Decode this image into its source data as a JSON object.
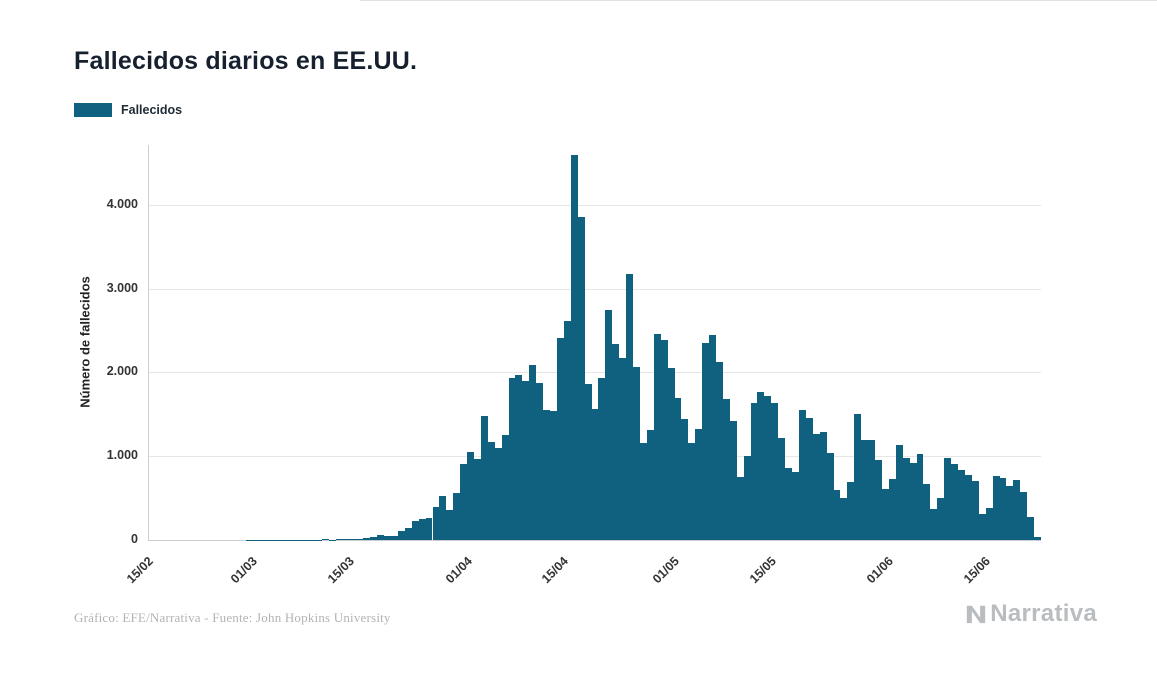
{
  "page": {
    "title": "Fallecidos diarios en EE.UU.",
    "footer": "Gráfico: EFE/Narrativa - Fuente: John Hopkins University",
    "brand": "Narrativa"
  },
  "legend": {
    "label": "Fallecidos"
  },
  "colors": {
    "bar": "#106180",
    "grid": "#e6e6e6",
    "axis": "#c9ced3",
    "title": "#16202e",
    "tick": "#333333",
    "footer_text": "#b3b3b3",
    "brand": "#b9bdc0"
  },
  "chart_data": {
    "type": "bar",
    "title": "Fallecidos diarios en EE.UU.",
    "series_name": "Fallecidos",
    "xlabel": "",
    "ylabel": "Número de fallecidos",
    "ylim": [
      0,
      4716
    ],
    "grid": "horizontal",
    "legend_position": "top-left",
    "yticks": [
      {
        "value": 0,
        "label": "0"
      },
      {
        "value": 1000,
        "label": "1.000"
      },
      {
        "value": 2000,
        "label": "2.000"
      },
      {
        "value": 3000,
        "label": "3.000"
      },
      {
        "value": 4000,
        "label": "4.000"
      }
    ],
    "xticks": [
      {
        "index": 0,
        "label": "15/02"
      },
      {
        "index": 15,
        "label": "01/03"
      },
      {
        "index": 29,
        "label": "15/03"
      },
      {
        "index": 46,
        "label": "01/04"
      },
      {
        "index": 60,
        "label": "15/04"
      },
      {
        "index": 76,
        "label": "01/05"
      },
      {
        "index": 90,
        "label": "15/05"
      },
      {
        "index": 107,
        "label": "01/06"
      },
      {
        "index": 121,
        "label": "15/06"
      }
    ],
    "x": [
      "15/02",
      "16/02",
      "17/02",
      "18/02",
      "19/02",
      "20/02",
      "21/02",
      "22/02",
      "23/02",
      "24/02",
      "25/02",
      "26/02",
      "27/02",
      "28/02",
      "29/02",
      "01/03",
      "02/03",
      "03/03",
      "04/03",
      "05/03",
      "06/03",
      "07/03",
      "08/03",
      "09/03",
      "10/03",
      "11/03",
      "12/03",
      "13/03",
      "14/03",
      "15/03",
      "16/03",
      "17/03",
      "18/03",
      "19/03",
      "20/03",
      "21/03",
      "22/03",
      "23/03",
      "24/03",
      "25/03",
      "26/03",
      "27/03",
      "28/03",
      "29/03",
      "30/03",
      "31/03",
      "01/04",
      "02/04",
      "03/04",
      "04/04",
      "05/04",
      "06/04",
      "07/04",
      "08/04",
      "09/04",
      "10/04",
      "11/04",
      "12/04",
      "13/04",
      "14/04",
      "15/04",
      "16/04",
      "17/04",
      "18/04",
      "19/04",
      "20/04",
      "21/04",
      "22/04",
      "23/04",
      "24/04",
      "25/04",
      "26/04",
      "27/04",
      "28/04",
      "29/04",
      "30/04",
      "01/05",
      "02/05",
      "03/05",
      "04/05",
      "05/05",
      "06/05",
      "07/05",
      "08/05",
      "09/05",
      "10/05",
      "11/05",
      "12/05",
      "13/05",
      "14/05",
      "15/05",
      "16/05",
      "17/05",
      "18/05",
      "19/05",
      "20/05",
      "21/05",
      "22/05",
      "23/05",
      "24/05",
      "25/05",
      "26/05",
      "27/05",
      "28/05",
      "29/05",
      "30/05",
      "31/05",
      "01/06",
      "02/06",
      "03/06",
      "04/06",
      "05/06",
      "06/06",
      "07/06",
      "08/06",
      "09/06",
      "10/06",
      "11/06",
      "12/06",
      "13/06",
      "14/06",
      "15/06",
      "16/06",
      "17/06",
      "18/06",
      "19/06",
      "20/06",
      "21/06",
      "22/06"
    ],
    "values": [
      0,
      0,
      0,
      0,
      0,
      0,
      0,
      0,
      0,
      0,
      0,
      0,
      0,
      0,
      1,
      1,
      5,
      1,
      4,
      1,
      3,
      2,
      4,
      4,
      6,
      8,
      3,
      8,
      9,
      11,
      18,
      23,
      41,
      57,
      49,
      46,
      111,
      140,
      225,
      247,
      268,
      400,
      525,
      363,
      558,
      912,
      1049,
      968,
      1480,
      1170,
      1100,
      1255,
      1939,
      1970,
      1900,
      2087,
      1877,
      1557,
      1541,
      2408,
      2620,
      4591,
      3857,
      1867,
      1561,
      1940,
      2749,
      2341,
      2172,
      3179,
      2062,
      1157,
      1317,
      2462,
      2390,
      2053,
      1691,
      1449,
      1154,
      1324,
      2350,
      2444,
      2129,
      1687,
      1422,
      750,
      1008,
      1630,
      1772,
      1715,
      1635,
      1218,
      865,
      808,
      1552,
      1461,
      1263,
      1293,
      1035,
      592,
      500,
      693,
      1505,
      1199,
      1193,
      960,
      605,
      730,
      1134,
      984,
      921,
      1030,
      670,
      373,
      498,
      983,
      906,
      841,
      780,
      709,
      306,
      384,
      765,
      737,
      650,
      712,
      578,
      271,
      37
    ]
  }
}
